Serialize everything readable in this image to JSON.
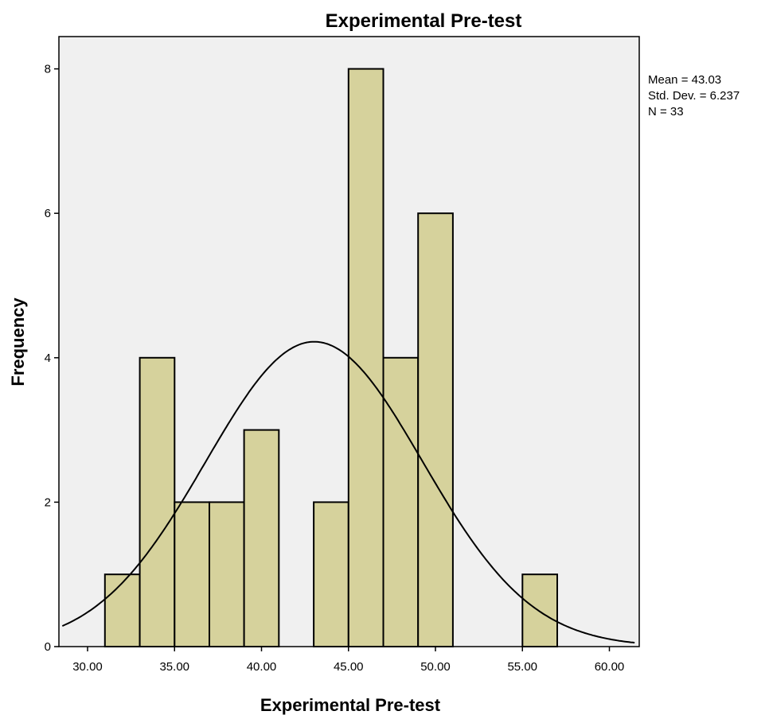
{
  "chart_data": {
    "type": "bar",
    "subtype": "histogram",
    "title": "Experimental Pre-test",
    "xlabel": "Experimental Pre-test",
    "ylabel": "Frequency",
    "xlim": [
      28.5,
      61.5
    ],
    "ylim": [
      0,
      8.8
    ],
    "x_ticks": [
      "30.00",
      "35.00",
      "40.00",
      "45.00",
      "50.00",
      "55.00",
      "60.00"
    ],
    "x_tick_values": [
      30,
      35,
      40,
      45,
      50,
      55,
      60
    ],
    "y_ticks": [
      0,
      2,
      4,
      6,
      8
    ],
    "bins": [
      {
        "start": 31,
        "end": 33,
        "count": 1
      },
      {
        "start": 33,
        "end": 35,
        "count": 4
      },
      {
        "start": 35,
        "end": 37,
        "count": 2
      },
      {
        "start": 37,
        "end": 39,
        "count": 2
      },
      {
        "start": 39,
        "end": 41,
        "count": 3
      },
      {
        "start": 41,
        "end": 43,
        "count": 0
      },
      {
        "start": 43,
        "end": 45,
        "count": 2
      },
      {
        "start": 45,
        "end": 47,
        "count": 8
      },
      {
        "start": 47,
        "end": 49,
        "count": 4
      },
      {
        "start": 49,
        "end": 51,
        "count": 6
      },
      {
        "start": 51,
        "end": 53,
        "count": 0
      },
      {
        "start": 53,
        "end": 55,
        "count": 0
      },
      {
        "start": 55,
        "end": 57,
        "count": 1
      }
    ],
    "normal_curve": {
      "mean": 43.03,
      "std": 6.237,
      "n": 33,
      "bin_width": 2
    },
    "stats": [
      "Mean = 43.03",
      "Std. Dev. = 6.237",
      "N = 33"
    ],
    "legend_position": "top-right (outside plot)",
    "grid": false,
    "colors": {
      "bar_fill": "#d6d29c",
      "bar_stroke": "#000000",
      "plot_background": "#f0f0f0",
      "curve": "#000000"
    }
  }
}
